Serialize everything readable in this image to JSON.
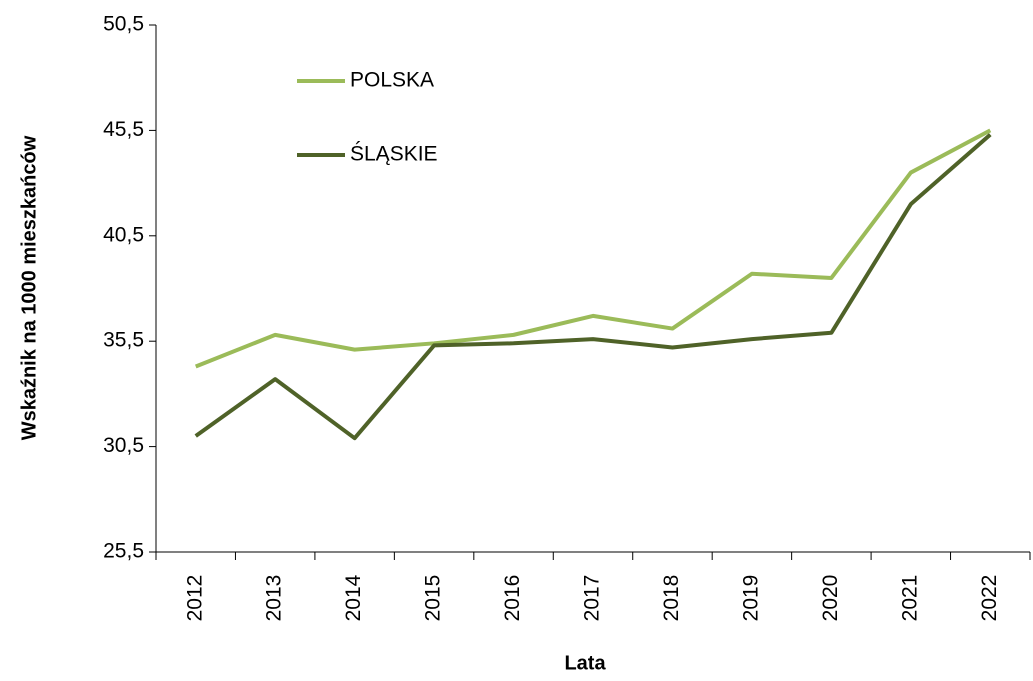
{
  "chart_data": {
    "type": "line",
    "xlabel": "Lata",
    "ylabel": "Wskaźnik na 1000 mieszkańców",
    "categories": [
      "2012",
      "2013",
      "2014",
      "2015",
      "2016",
      "2017",
      "2018",
      "2019",
      "2020",
      "2021",
      "2022"
    ],
    "series": [
      {
        "name": "POLSKA",
        "color": "#9bbb59",
        "values": [
          34.3,
          35.8,
          35.1,
          35.4,
          35.8,
          36.7,
          36.1,
          38.7,
          38.5,
          43.5,
          45.5
        ]
      },
      {
        "name": "ŚLĄSKIE",
        "color": "#4f6228",
        "values": [
          31.0,
          33.7,
          30.9,
          35.3,
          35.4,
          35.6,
          35.2,
          35.6,
          35.9,
          42.0,
          45.3
        ]
      }
    ],
    "ylim": [
      25.5,
      50.5
    ],
    "yticks": [
      {
        "value": 25.5,
        "label": "25,5"
      },
      {
        "value": 30.5,
        "label": "30,5"
      },
      {
        "value": 35.5,
        "label": "35,5"
      },
      {
        "value": 40.5,
        "label": "40,5"
      },
      {
        "value": 45.5,
        "label": "45,5"
      },
      {
        "value": 50.5,
        "label": "50,5"
      }
    ],
    "grid": false,
    "legend": "upper-left"
  }
}
